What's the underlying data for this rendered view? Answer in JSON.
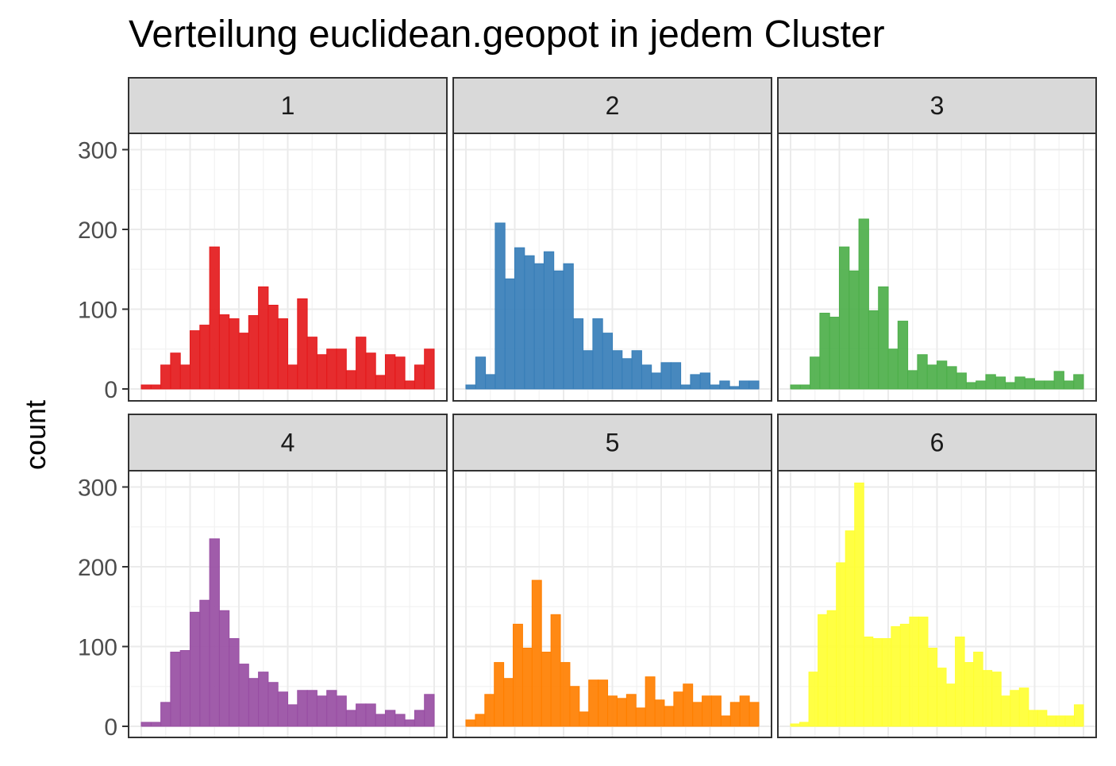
{
  "chart_data": {
    "type": "bar",
    "title": "Verteilung euclidean.geopot in jedem Cluster",
    "xlabel": "",
    "ylabel": "count",
    "ylim": [
      0,
      330
    ],
    "yticks": [
      0,
      100,
      200,
      300
    ],
    "grid": true,
    "layout": "facet grid 2 rows x 3 columns",
    "panels": [
      {
        "label": "1",
        "color": "#e41a1c",
        "values": [
          5,
          5,
          30,
          45,
          30,
          73,
          80,
          178,
          93,
          88,
          70,
          92,
          128,
          105,
          88,
          30,
          113,
          65,
          43,
          50,
          50,
          23,
          65,
          45,
          17,
          43,
          40,
          10,
          30,
          50
        ]
      },
      {
        "label": "2",
        "color": "#377eb8",
        "values": [
          5,
          40,
          18,
          208,
          138,
          177,
          167,
          157,
          172,
          148,
          157,
          88,
          48,
          88,
          70,
          48,
          38,
          48,
          30,
          20,
          33,
          33,
          5,
          18,
          20,
          5,
          10,
          3,
          10,
          10
        ]
      },
      {
        "label": "3",
        "color": "#4daf4a",
        "values": [
          5,
          5,
          40,
          95,
          90,
          178,
          148,
          213,
          98,
          128,
          50,
          85,
          23,
          43,
          30,
          35,
          28,
          20,
          8,
          10,
          18,
          15,
          8,
          15,
          13,
          10,
          10,
          22,
          10,
          18
        ]
      },
      {
        "label": "4",
        "color": "#984ea3",
        "values": [
          5,
          5,
          30,
          93,
          95,
          143,
          158,
          235,
          145,
          110,
          78,
          60,
          68,
          55,
          43,
          27,
          45,
          45,
          38,
          45,
          38,
          20,
          28,
          28,
          15,
          20,
          15,
          8,
          20,
          40
        ]
      },
      {
        "label": "5",
        "color": "#ff7f00",
        "values": [
          8,
          15,
          40,
          80,
          60,
          128,
          98,
          183,
          93,
          140,
          80,
          50,
          18,
          58,
          58,
          38,
          35,
          40,
          23,
          62,
          33,
          25,
          43,
          53,
          30,
          38,
          38,
          13,
          30,
          38,
          30
        ]
      },
      {
        "label": "6",
        "color": "#ffff33",
        "values": [
          3,
          5,
          68,
          140,
          145,
          205,
          245,
          305,
          112,
          110,
          110,
          125,
          128,
          137,
          137,
          98,
          73,
          53,
          112,
          80,
          93,
          70,
          68,
          38,
          45,
          48,
          20,
          20,
          13,
          13,
          13,
          27
        ]
      }
    ]
  }
}
